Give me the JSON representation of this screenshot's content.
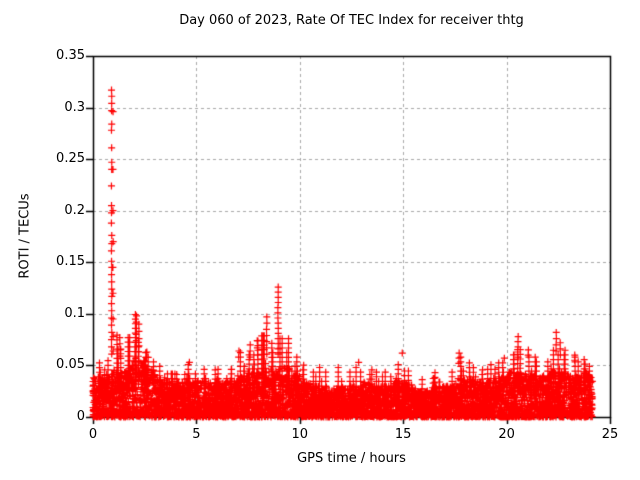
{
  "figure": {
    "title": "Day 060 of 2023, Rate Of TEC Index for receiver thtg",
    "xlabel": "GPS time / hours",
    "ylabel": "ROTI / TECUs"
  },
  "chart_data": {
    "type": "scatter",
    "title": "Day 060 of 2023, Rate Of TEC Index for receiver thtg",
    "xlabel": "GPS time / hours",
    "ylabel": "ROTI / TECUs",
    "xlim": [
      0,
      25
    ],
    "ylim": [
      0,
      0.35
    ],
    "xticks": [
      0,
      5,
      10,
      15,
      20,
      25
    ],
    "xtick_labels": [
      "0",
      "5",
      "10",
      "15",
      "20",
      "25"
    ],
    "yticks": [
      0,
      0.05,
      0.1,
      0.15,
      0.2,
      0.25,
      0.3,
      0.35
    ],
    "ytick_labels": [
      "0",
      "0.05",
      "0.1",
      "0.15",
      "0.2",
      "0.25",
      "0.3",
      "0.35"
    ],
    "grid": true,
    "grid_style": "dashed",
    "grid_color": "#a9a9a9",
    "legend_position": "none",
    "marker": "plus",
    "marker_color": "#ff0000",
    "marker_size_px": 7,
    "data_x_range_hours": [
      0,
      24.1
    ],
    "band_bins_format": "[start_hour, dense_band_top_TECU, bin_max_TECU, optional_bin_width_hours(default 0.5)]",
    "band_bins": [
      [
        0.0,
        0.038,
        0.053
      ],
      [
        0.5,
        0.042,
        0.055
      ],
      [
        1.0,
        0.046,
        0.08
      ],
      [
        1.5,
        0.05,
        0.078
      ],
      [
        2.0,
        0.058,
        0.1
      ],
      [
        2.5,
        0.048,
        0.065
      ],
      [
        3.0,
        0.04,
        0.05
      ],
      [
        3.5,
        0.035,
        0.046
      ],
      [
        4.0,
        0.034,
        0.045
      ],
      [
        4.5,
        0.035,
        0.053
      ],
      [
        5.0,
        0.035,
        0.048
      ],
      [
        5.5,
        0.034,
        0.046
      ],
      [
        6.0,
        0.035,
        0.047
      ],
      [
        6.5,
        0.035,
        0.05
      ],
      [
        7.0,
        0.04,
        0.065
      ],
      [
        7.5,
        0.044,
        0.075
      ],
      [
        8.0,
        0.045,
        0.08
      ],
      [
        8.5,
        0.048,
        0.075
      ],
      [
        9.0,
        0.048,
        0.08
      ],
      [
        9.5,
        0.04,
        0.06
      ],
      [
        10.0,
        0.034,
        0.052
      ],
      [
        10.5,
        0.03,
        0.048
      ],
      [
        11.0,
        0.03,
        0.045
      ],
      [
        11.5,
        0.03,
        0.048
      ],
      [
        12.0,
        0.03,
        0.044
      ],
      [
        12.5,
        0.03,
        0.048
      ],
      [
        13.0,
        0.034,
        0.05
      ],
      [
        13.5,
        0.03,
        0.044
      ],
      [
        14.0,
        0.03,
        0.044
      ],
      [
        14.5,
        0.035,
        0.055
      ],
      [
        15.0,
        0.032,
        0.048
      ],
      [
        15.5,
        0.025,
        0.038
      ],
      [
        16.0,
        0.027,
        0.04
      ],
      [
        16.5,
        0.029,
        0.043
      ],
      [
        17.0,
        0.03,
        0.046
      ],
      [
        17.5,
        0.04,
        0.058
      ],
      [
        18.0,
        0.038,
        0.055
      ],
      [
        18.5,
        0.034,
        0.048
      ],
      [
        19.0,
        0.035,
        0.052
      ],
      [
        19.5,
        0.038,
        0.055
      ],
      [
        20.0,
        0.044,
        0.062
      ],
      [
        20.5,
        0.045,
        0.068
      ],
      [
        21.0,
        0.04,
        0.062
      ],
      [
        21.5,
        0.04,
        0.056
      ],
      [
        22.0,
        0.044,
        0.068
      ],
      [
        22.5,
        0.044,
        0.065
      ],
      [
        23.0,
        0.04,
        0.058
      ],
      [
        23.5,
        0.044,
        0.056
      ],
      [
        24.0,
        0.04,
        0.05,
        0.15
      ]
    ],
    "spike_points": [
      {
        "x": 0.9,
        "ys": [
          0.317,
          0.311,
          0.304,
          0.297,
          0.284,
          0.278,
          0.261,
          0.247,
          0.24,
          0.224,
          0.205,
          0.198,
          0.188,
          0.176,
          0.168,
          0.161,
          0.151,
          0.145,
          0.138,
          0.131,
          0.124,
          0.117,
          0.11,
          0.103,
          0.096,
          0.089,
          0.082,
          0.075,
          0.068,
          0.061
        ]
      },
      {
        "x": 0.97,
        "ys": [
          0.296,
          0.24,
          0.2,
          0.17,
          0.145,
          0.12,
          0.095,
          0.078,
          0.064
        ]
      },
      {
        "x": 1.3,
        "ys": [
          0.077,
          0.071,
          0.065,
          0.059
        ]
      },
      {
        "x": 2.1,
        "ys": [
          0.098,
          0.092,
          0.086,
          0.08,
          0.074,
          0.068
        ]
      },
      {
        "x": 2.22,
        "ys": [
          0.09,
          0.083,
          0.076,
          0.069,
          0.063
        ]
      },
      {
        "x": 2.6,
        "ys": [
          0.063,
          0.058
        ]
      },
      {
        "x": 4.66,
        "ys": [
          0.053
        ]
      },
      {
        "x": 7.05,
        "ys": [
          0.064,
          0.058
        ]
      },
      {
        "x": 7.6,
        "ys": [
          0.07,
          0.064,
          0.058
        ]
      },
      {
        "x": 7.95,
        "ys": [
          0.074,
          0.067,
          0.06
        ]
      },
      {
        "x": 8.4,
        "ys": [
          0.097,
          0.091,
          0.085,
          0.079,
          0.073,
          0.067,
          0.061
        ]
      },
      {
        "x": 8.95,
        "ys": [
          0.126,
          0.121,
          0.116,
          0.111,
          0.106,
          0.101,
          0.096,
          0.091,
          0.086,
          0.081,
          0.076,
          0.071,
          0.066,
          0.061
        ]
      },
      {
        "x": 12.85,
        "ys": [
          0.053
        ]
      },
      {
        "x": 14.95,
        "ys": [
          0.062
        ]
      },
      {
        "x": 17.7,
        "ys": [
          0.062,
          0.057,
          0.052
        ]
      },
      {
        "x": 19.9,
        "ys": [
          0.057
        ]
      },
      {
        "x": 20.55,
        "ys": [
          0.078,
          0.073,
          0.068,
          0.063,
          0.058
        ]
      },
      {
        "x": 21.05,
        "ys": [
          0.065,
          0.06
        ]
      },
      {
        "x": 22.4,
        "ys": [
          0.082,
          0.076,
          0.07,
          0.064
        ]
      },
      {
        "x": 22.6,
        "ys": [
          0.072,
          0.066,
          0.06
        ]
      },
      {
        "x": 23.3,
        "ys": [
          0.06,
          0.055
        ]
      }
    ],
    "axis_color": "#000000",
    "background_color": "#ffffff"
  }
}
